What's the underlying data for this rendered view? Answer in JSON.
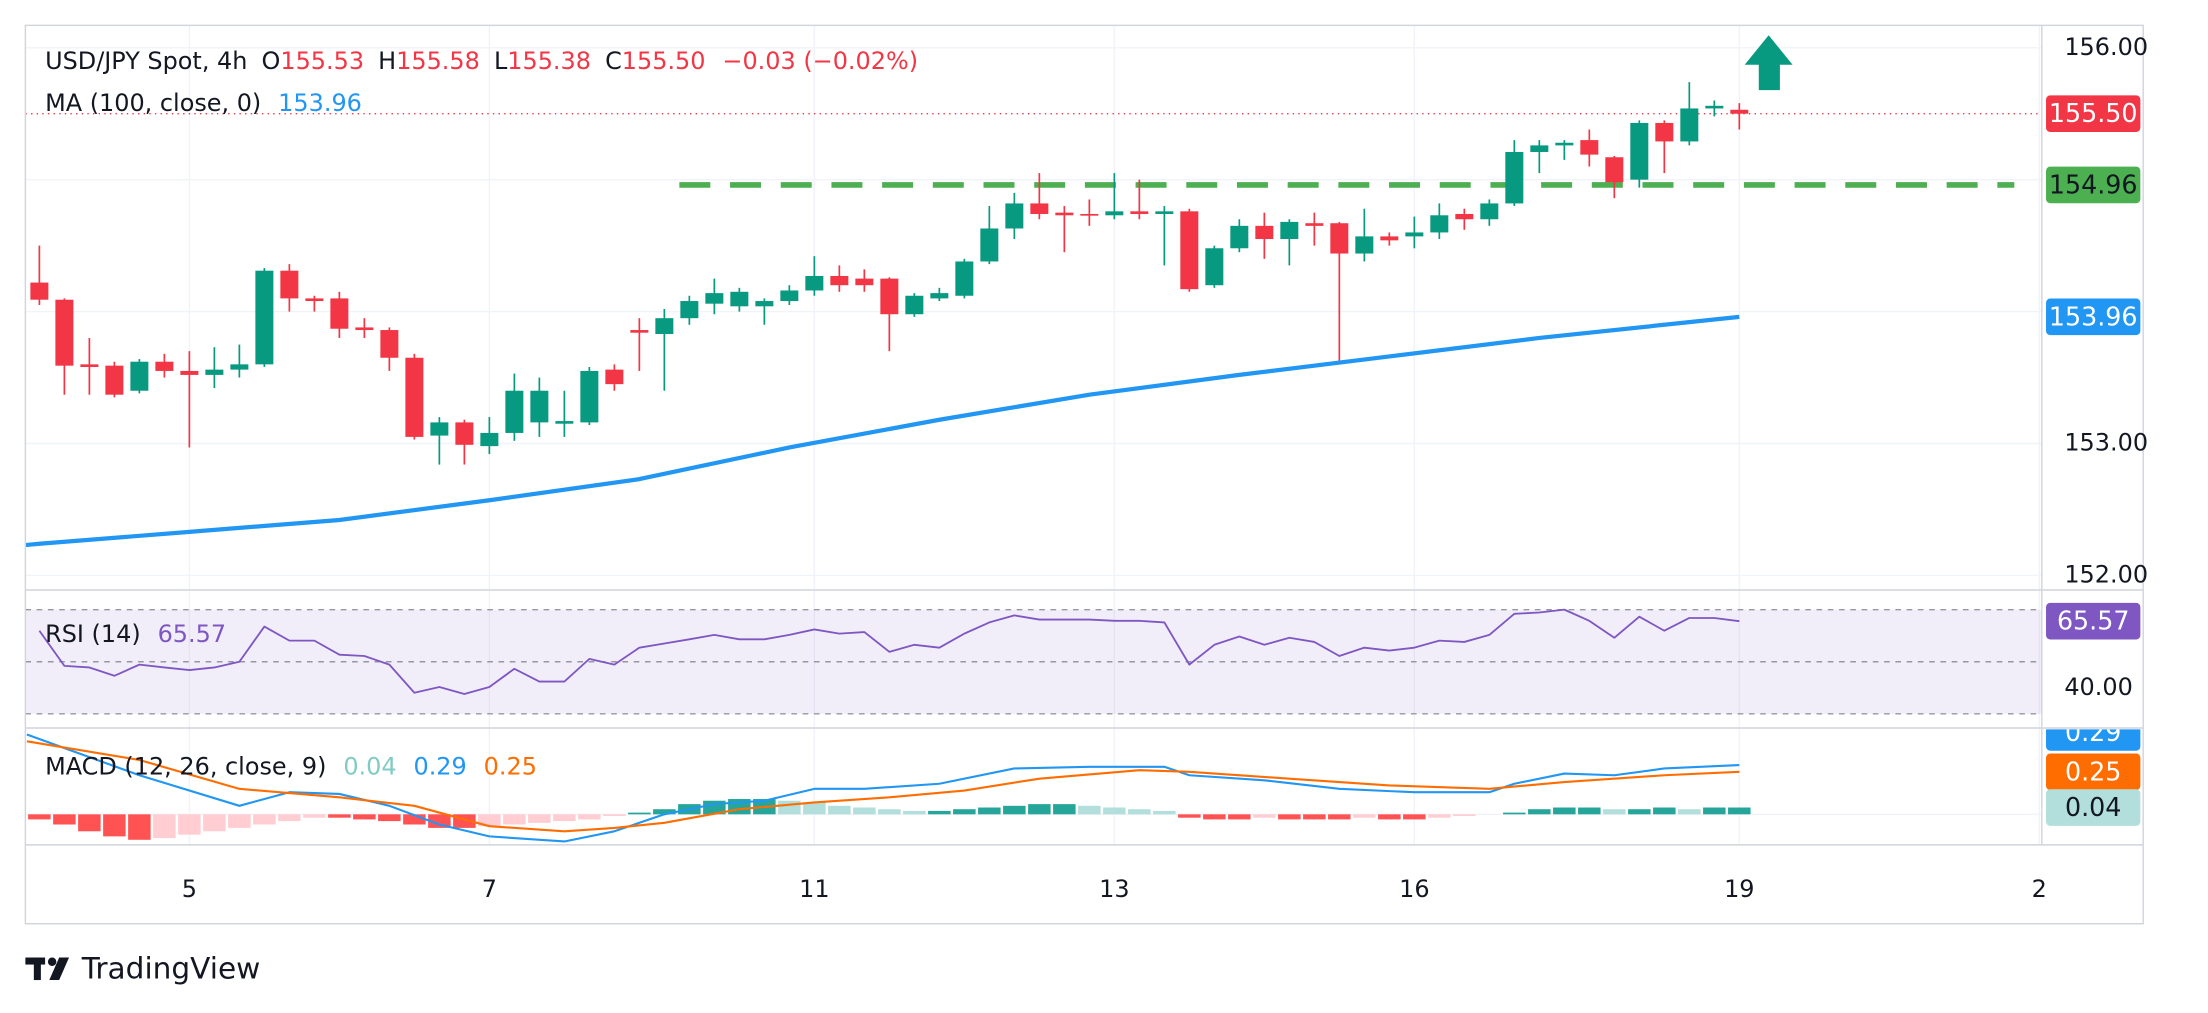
{
  "chart_data": {
    "type": "candlestick",
    "title": "USD/JPY Spot, 4h",
    "legend_ohlc": [
      [
        "O",
        155.53
      ],
      [
        "H",
        155.58
      ],
      [
        "L",
        155.38
      ],
      [
        "C",
        {
          "value": 155.5,
          "label": "155.50"
        }
      ]
    ],
    "change": "−0.03 (−0.02%)",
    "up_color": "#089981",
    "down_color": "#f23645",
    "grid": true,
    "categories": [
      null,
      null,
      null,
      null,
      null,
      null,
      null,
      null,
      null,
      null,
      null,
      null,
      null,
      null,
      null,
      null,
      null,
      null,
      null,
      null,
      null,
      null,
      null,
      null,
      null,
      null,
      null,
      null,
      null,
      null,
      null,
      null,
      null,
      null,
      null,
      null,
      null,
      null,
      null,
      null,
      null,
      null,
      null,
      null,
      null,
      null,
      null,
      null,
      null,
      null,
      null,
      null,
      null,
      null,
      null,
      null,
      null,
      null,
      null,
      null,
      null,
      null,
      null,
      null,
      null,
      null,
      null,
      null,
      null
    ],
    "open": [
      154.22,
      154.09,
      153.6,
      153.59,
      153.4,
      153.62,
      153.55,
      153.52,
      153.56,
      153.6,
      154.31,
      154.1,
      154.1,
      153.88,
      153.86,
      153.65,
      153.06,
      153.16,
      152.98,
      153.08,
      153.16,
      153.15,
      153.16,
      153.56,
      153.86,
      153.83,
      153.95,
      154.06,
      154.04,
      154.04,
      154.08,
      154.16,
      154.27,
      154.25,
      154.25,
      153.98,
      154.1,
      154.12,
      154.38,
      154.63,
      154.82,
      154.75,
      154.74,
      154.73,
      154.76,
      154.74,
      154.76,
      154.2,
      154.48,
      154.65,
      154.55,
      154.67,
      154.67,
      154.44,
      154.57,
      154.57,
      154.6,
      154.74,
      154.7,
      154.82,
      155.21,
      155.26,
      155.3,
      155.17,
      155.0,
      155.43,
      155.29,
      155.54,
      155.53
    ],
    "high": [
      154.5,
      154.1,
      153.8,
      153.62,
      153.64,
      153.68,
      153.7,
      153.73,
      153.75,
      154.33,
      154.36,
      154.12,
      154.15,
      153.95,
      153.88,
      153.68,
      153.2,
      153.18,
      153.2,
      153.53,
      153.5,
      153.4,
      153.58,
      153.6,
      153.95,
      154.02,
      154.12,
      154.25,
      154.18,
      154.1,
      154.2,
      154.42,
      154.35,
      154.32,
      154.26,
      154.14,
      154.18,
      154.4,
      154.8,
      154.9,
      155.05,
      154.8,
      154.85,
      155.05,
      155.0,
      154.8,
      154.78,
      154.5,
      154.7,
      154.75,
      154.7,
      154.75,
      154.68,
      154.78,
      154.6,
      154.72,
      154.82,
      154.78,
      154.85,
      155.3,
      155.3,
      155.3,
      155.38,
      155.18,
      155.45,
      155.45,
      155.74,
      155.6,
      155.58
    ],
    "low": [
      154.05,
      153.37,
      153.37,
      153.35,
      153.38,
      153.5,
      152.97,
      153.42,
      153.5,
      153.58,
      154.0,
      154.0,
      153.8,
      153.8,
      153.55,
      153.03,
      152.84,
      152.84,
      152.92,
      153.02,
      153.05,
      153.05,
      153.14,
      153.4,
      153.55,
      153.4,
      153.9,
      153.98,
      154.0,
      153.9,
      154.05,
      154.12,
      154.15,
      154.15,
      153.7,
      153.96,
      154.08,
      154.1,
      154.36,
      154.55,
      154.7,
      154.45,
      154.65,
      154.7,
      154.7,
      154.35,
      154.15,
      154.18,
      154.45,
      154.4,
      154.35,
      154.5,
      153.6,
      154.38,
      154.5,
      154.48,
      154.55,
      154.62,
      154.65,
      154.8,
      155.05,
      155.15,
      155.1,
      154.86,
      154.94,
      155.05,
      155.26,
      155.48,
      155.38
    ],
    "close": [
      154.09,
      153.59,
      153.58,
      153.37,
      153.62,
      153.55,
      153.52,
      153.56,
      153.6,
      154.31,
      154.1,
      154.08,
      153.87,
      153.86,
      153.65,
      153.05,
      153.16,
      152.99,
      153.08,
      153.4,
      153.4,
      153.17,
      153.55,
      153.45,
      153.84,
      153.95,
      154.08,
      154.14,
      154.15,
      154.08,
      154.16,
      154.27,
      154.2,
      154.2,
      153.98,
      154.12,
      154.14,
      154.38,
      154.63,
      154.82,
      154.74,
      154.73,
      154.73,
      154.76,
      154.74,
      154.76,
      154.17,
      154.48,
      154.65,
      154.55,
      154.68,
      154.65,
      154.44,
      154.57,
      154.54,
      154.6,
      154.73,
      154.7,
      154.82,
      155.21,
      155.26,
      155.28,
      155.19,
      154.98,
      155.43,
      155.29,
      155.54,
      155.56,
      155.5
    ],
    "xlim": [
      -0.56,
      80.1
    ],
    "xticks": [
      {
        "value": 6,
        "label": "5"
      },
      {
        "value": 18,
        "label": "7"
      },
      {
        "value": 31,
        "label": "11"
      },
      {
        "value": 43,
        "label": "13"
      },
      {
        "value": 55,
        "label": "16"
      },
      {
        "value": 68,
        "label": "19"
      },
      {
        "value": 80,
        "label": "2"
      }
    ],
    "ylim": [
      151.9,
      156.17
    ],
    "yticks": [
      {
        "value": 156,
        "label": "156.00"
      },
      {
        "value": 153,
        "label": "153.00"
      },
      {
        "value": 152,
        "label": "152.00"
      }
    ],
    "gridlines": [
      155,
      154
    ],
    "ma": {
      "label": "MA (100, close, 0)",
      "value": 153.96,
      "color": "#2196f3",
      "x": [
        -0.56,
        0,
        6,
        12,
        18,
        24,
        30,
        36,
        42,
        48,
        54,
        60,
        68
      ],
      "values": [
        152.23,
        152.24,
        152.33,
        152.42,
        152.57,
        152.73,
        152.97,
        153.18,
        153.37,
        153.52,
        153.66,
        153.8,
        153.96
      ]
    },
    "level": {
      "value": 154.96,
      "color": "#4caf50",
      "x": [
        25.6,
        79.0
      ]
    },
    "last_price": {
      "value": 155.5,
      "label": "155.50",
      "color": "#f23645"
    },
    "rsi": {
      "label": "RSI (14)",
      "value": 65.57,
      "color": "#7e57c2",
      "values": [
        61.9,
        48.4,
        47.8,
        44.6,
        48.9,
        47.8,
        46.8,
        47.8,
        50.0,
        63.5,
        58.1,
        58.1,
        52.7,
        52.2,
        48.9,
        38.1,
        40.3,
        37.6,
        40.3,
        47.3,
        42.4,
        42.4,
        51.1,
        48.9,
        55.4,
        57.0,
        58.6,
        60.3,
        58.6,
        58.6,
        60.3,
        62.4,
        60.8,
        61.4,
        53.8,
        56.5,
        55.4,
        60.8,
        65.1,
        67.8,
        66.2,
        66.2,
        66.2,
        65.7,
        65.7,
        65.1,
        48.9,
        56.5,
        59.7,
        56.5,
        59.2,
        57.6,
        52.2,
        55.4,
        54.3,
        55.4,
        58.1,
        57.6,
        60.3,
        68.4,
        68.9,
        70.0,
        65.7,
        59.2,
        67.3,
        61.9,
        66.8,
        66.8,
        65.57
      ],
      "ylim": [
        25.1,
        77.0
      ],
      "yticks": [
        {
          "value": 40,
          "label": "40.00"
        }
      ],
      "levels": [
        70,
        50,
        30
      ]
    },
    "macd": {
      "label": "MACD (12, 26, close, 9)",
      "ylim": [
        -0.18,
        0.5
      ],
      "histogram": {
        "value": 0.04,
        "color": "#80cbc4",
        "colors": {
          "rise_pos": "#26a69a",
          "fall_pos": "#b2dfdb",
          "fall_neg": "#ff5252",
          "rise_neg": "#ffcdd2"
        },
        "values": [
          -0.03,
          -0.06,
          -0.1,
          -0.13,
          -0.15,
          -0.14,
          -0.12,
          -0.1,
          -0.08,
          -0.06,
          -0.04,
          -0.02,
          -0.02,
          -0.03,
          -0.04,
          -0.06,
          -0.08,
          -0.08,
          -0.07,
          -0.06,
          -0.05,
          -0.04,
          -0.03,
          -0.01,
          0.01,
          0.03,
          0.06,
          0.08,
          0.09,
          0.09,
          0.08,
          0.07,
          0.05,
          0.04,
          0.03,
          0.02,
          0.02,
          0.03,
          0.04,
          0.05,
          0.06,
          0.06,
          0.05,
          0.04,
          0.03,
          0.02,
          -0.02,
          -0.03,
          -0.03,
          -0.02,
          -0.03,
          -0.03,
          -0.03,
          -0.02,
          -0.03,
          -0.03,
          -0.02,
          -0.01,
          0.0,
          0.01,
          0.03,
          0.04,
          0.04,
          0.03,
          0.03,
          0.04,
          0.03,
          0.04,
          0.04
        ]
      },
      "macd": {
        "value": 0.29,
        "color": "#2196f3",
        "x": [
          -0.5,
          4,
          8,
          10,
          12,
          14,
          16,
          18,
          21,
          23,
          25,
          27,
          29,
          31,
          33,
          36,
          39,
          42,
          45,
          46,
          49,
          52,
          55,
          58,
          59,
          61,
          63,
          65,
          68
        ],
        "values": [
          0.47,
          0.23,
          0.05,
          0.13,
          0.12,
          0.05,
          -0.06,
          -0.13,
          -0.16,
          -0.1,
          0.0,
          0.06,
          0.08,
          0.15,
          0.15,
          0.18,
          0.27,
          0.28,
          0.28,
          0.23,
          0.2,
          0.15,
          0.13,
          0.13,
          0.18,
          0.24,
          0.23,
          0.27,
          0.29
        ]
      },
      "signal": {
        "value": 0.25,
        "color": "#ff6d00",
        "x": [
          -0.5,
          4,
          8,
          12,
          15,
          18,
          21,
          23,
          25,
          28,
          31,
          34,
          37,
          40,
          44,
          46,
          50,
          54,
          58,
          61,
          65,
          68
        ],
        "values": [
          0.43,
          0.32,
          0.15,
          0.1,
          0.05,
          -0.07,
          -0.1,
          -0.08,
          -0.05,
          0.03,
          0.07,
          0.1,
          0.14,
          0.21,
          0.26,
          0.25,
          0.21,
          0.17,
          0.15,
          0.19,
          0.23,
          0.25
        ]
      }
    },
    "branding": "TradingView"
  }
}
